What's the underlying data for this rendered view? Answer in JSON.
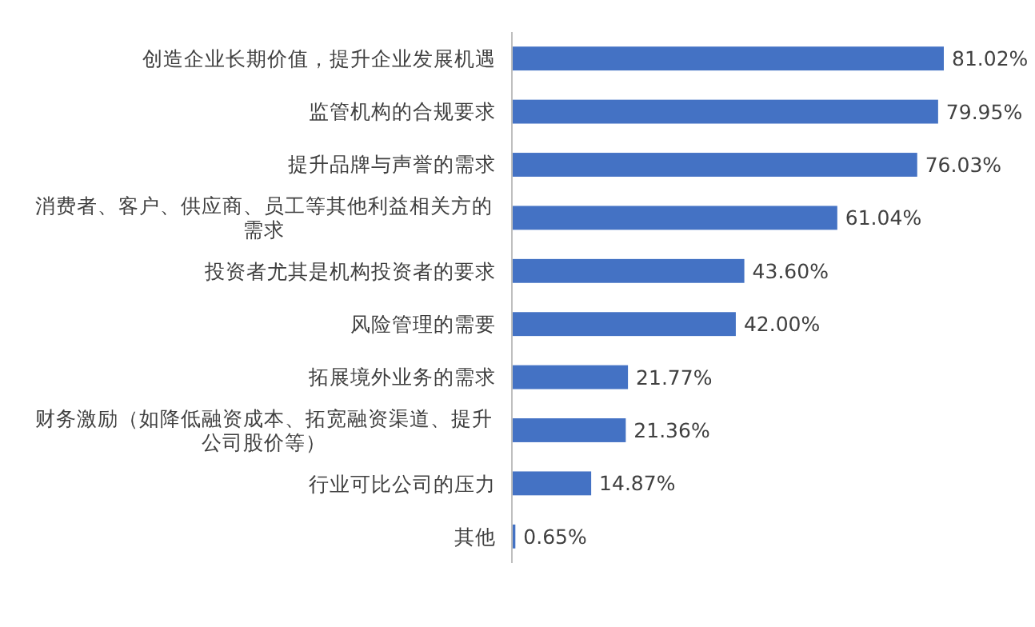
{
  "chart_data": {
    "type": "bar",
    "orientation": "horizontal",
    "color": "#4472c4",
    "categories": [
      "创造企业长期价值，提升企业发展机遇",
      "监管机构的合规要求",
      "提升品牌与声誉的需求",
      "消费者、客户、供应商、员工等其他利益相关方的需求",
      "投资者尤其是机构投资者的要求",
      "风险管理的需要",
      "拓展境外业务的需求",
      "财务激励（如降低融资成本、拓宽融资渠道、提升公司股价等）",
      "行业可比公司的压力",
      "其他"
    ],
    "values": [
      81.02,
      79.95,
      76.03,
      61.04,
      43.6,
      42.0,
      21.77,
      21.36,
      14.87,
      0.65
    ],
    "value_labels": [
      "81.02%",
      "79.95%",
      "76.03%",
      "61.04%",
      "43.60%",
      "42.00%",
      "21.77%",
      "21.36%",
      "14.87%",
      "0.65%"
    ]
  }
}
